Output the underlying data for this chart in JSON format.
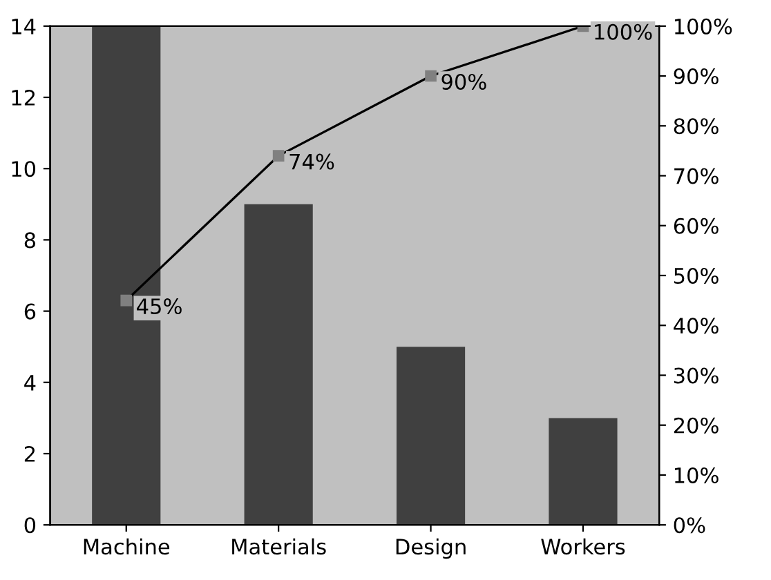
{
  "chart_data": {
    "type": "bar",
    "categories": [
      "Machine",
      "Materials",
      "Design",
      "Workers"
    ],
    "series": [
      {
        "color": "#404040",
        "values": [
          14,
          9,
          5,
          3
        ]
      },
      {
        "type": "line",
        "axis": "y2",
        "color": "#000000",
        "marker": "square",
        "values": [
          45,
          74,
          90,
          100
        ],
        "value_labels": [
          "45%",
          "74%",
          "90%",
          "100%"
        ]
      }
    ],
    "ylim": [
      0,
      14
    ],
    "yticks": [
      0,
      2,
      4,
      6,
      8,
      10,
      12,
      14
    ],
    "y2lim": [
      0,
      100
    ],
    "y2ticks": [
      {
        "value": 0,
        "label": "0%"
      },
      {
        "value": 10,
        "label": "10%"
      },
      {
        "value": 20,
        "label": "20%"
      },
      {
        "value": 30,
        "label": "30%"
      },
      {
        "value": 40,
        "label": "40%"
      },
      {
        "value": 50,
        "label": "50%"
      },
      {
        "value": 60,
        "label": "60%"
      },
      {
        "value": 70,
        "label": "70%"
      },
      {
        "value": 80,
        "label": "80%"
      },
      {
        "value": 90,
        "label": "90%"
      },
      {
        "value": 100,
        "label": "100%"
      }
    ],
    "grid": false
  }
}
